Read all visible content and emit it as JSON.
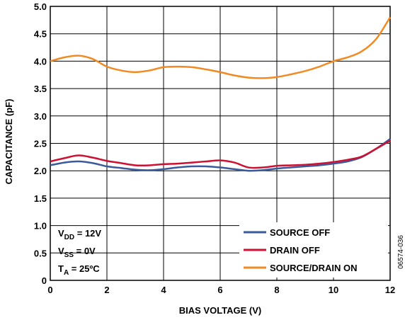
{
  "chart_data": {
    "type": "line",
    "xlabel": "BIAS VOLTAGE (V)",
    "ylabel": "CAPACITANCE (pF)",
    "xlim": [
      0,
      12
    ],
    "ylim": [
      0,
      5.0
    ],
    "xticks": [
      "0",
      "2",
      "4",
      "6",
      "8",
      "10",
      "12"
    ],
    "yticks": [
      "0",
      "0.5",
      "1.0",
      "1.5",
      "2.0",
      "2.5",
      "3.0",
      "3.5",
      "4.0",
      "4.5",
      "5.0"
    ],
    "grid": true,
    "legend_position": "bottom-right",
    "figure_id": "06574-036",
    "conditions": [
      {
        "label": "V",
        "sub": "DD",
        "value": " = 12V"
      },
      {
        "label": "V",
        "sub": "SS",
        "value": " = 0V"
      },
      {
        "label": "T",
        "sub": "A",
        "value": " = 25ºC"
      }
    ],
    "series": [
      {
        "name": "SOURCE OFF",
        "color": "#3a5a9b",
        "x": [
          0,
          0.5,
          1,
          1.5,
          2,
          2.5,
          3,
          3.5,
          4,
          4.5,
          5,
          5.5,
          6,
          6.5,
          7,
          7.5,
          8,
          8.5,
          9,
          9.5,
          10,
          10.5,
          11,
          11.5,
          12
        ],
        "y": [
          2.1,
          2.15,
          2.17,
          2.14,
          2.08,
          2.05,
          2.02,
          2.01,
          2.03,
          2.06,
          2.08,
          2.08,
          2.06,
          2.03,
          2.0,
          2.01,
          2.04,
          2.06,
          2.08,
          2.1,
          2.13,
          2.17,
          2.25,
          2.4,
          2.58
        ]
      },
      {
        "name": "DRAIN OFF",
        "color": "#cc1133",
        "x": [
          0,
          0.5,
          1,
          1.5,
          2,
          2.5,
          3,
          3.5,
          4,
          4.5,
          5,
          5.5,
          6,
          6.5,
          7,
          7.5,
          8,
          8.5,
          9,
          9.5,
          10,
          10.5,
          11,
          11.5,
          12
        ],
        "y": [
          2.17,
          2.23,
          2.28,
          2.24,
          2.18,
          2.14,
          2.1,
          2.1,
          2.12,
          2.13,
          2.15,
          2.17,
          2.19,
          2.15,
          2.06,
          2.06,
          2.09,
          2.1,
          2.11,
          2.13,
          2.16,
          2.2,
          2.26,
          2.4,
          2.55
        ]
      },
      {
        "name": "SOURCE/DRAIN ON",
        "color": "#f28a24",
        "x": [
          0,
          0.5,
          1,
          1.5,
          2,
          2.5,
          3,
          3.5,
          4,
          4.5,
          5,
          5.5,
          6,
          6.5,
          7,
          7.5,
          8,
          8.5,
          9,
          9.5,
          10,
          10.5,
          11,
          11.5,
          12
        ],
        "y": [
          4.0,
          4.07,
          4.1,
          4.04,
          3.9,
          3.83,
          3.8,
          3.83,
          3.89,
          3.9,
          3.89,
          3.85,
          3.8,
          3.74,
          3.7,
          3.69,
          3.71,
          3.76,
          3.82,
          3.9,
          4.0,
          4.07,
          4.18,
          4.4,
          4.8
        ]
      }
    ]
  }
}
